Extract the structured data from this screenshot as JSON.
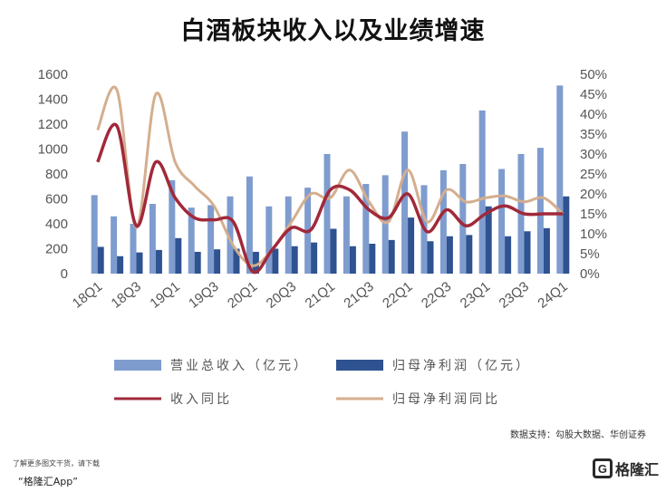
{
  "chart_data": {
    "type": "bar",
    "title": "白酒板块收入以及业绩增速",
    "categories": [
      "18Q1",
      "18Q2",
      "18Q3",
      "18Q4",
      "19Q1",
      "19Q2",
      "19Q3",
      "19Q4",
      "20Q1",
      "20Q2",
      "20Q3",
      "20Q4",
      "21Q1",
      "21Q2",
      "21Q3",
      "21Q4",
      "22Q1",
      "22Q2",
      "22Q3",
      "22Q4",
      "23Q1",
      "23Q2",
      "23Q3",
      "23Q4",
      "24Q1"
    ],
    "x_tick_labels": [
      "18Q1",
      "18Q3",
      "19Q1",
      "19Q3",
      "20Q1",
      "20Q3",
      "21Q1",
      "21Q3",
      "22Q1",
      "22Q3",
      "23Q1",
      "23Q3",
      "24Q1"
    ],
    "left_axis": {
      "ylim": [
        0,
        1600
      ],
      "ticks": [
        "0",
        "200",
        "400",
        "600",
        "800",
        "1000",
        "1200",
        "1400",
        "1600"
      ]
    },
    "right_axis": {
      "ylim": [
        0,
        50
      ],
      "ticks": [
        "0%",
        "5%",
        "10%",
        "15%",
        "20%",
        "25%",
        "30%",
        "35%",
        "40%",
        "45%",
        "50%"
      ]
    },
    "bar_series": [
      {
        "name": "营业总收入（亿元）",
        "axis": "left",
        "color": "#7f9ccf",
        "values": [
          630,
          460,
          400,
          560,
          750,
          530,
          550,
          620,
          780,
          540,
          620,
          690,
          960,
          620,
          720,
          790,
          1140,
          710,
          830,
          880,
          1310,
          840,
          960,
          1010,
          1510
        ]
      },
      {
        "name": "归母净利润（亿元）",
        "axis": "left",
        "color": "#2f5290",
        "values": [
          215,
          140,
          170,
          190,
          285,
          175,
          195,
          200,
          175,
          200,
          220,
          250,
          360,
          220,
          240,
          270,
          450,
          260,
          300,
          310,
          540,
          300,
          340,
          365,
          620
        ]
      }
    ],
    "line_series": [
      {
        "name": "收入同比",
        "axis": "right",
        "color": "#a1293a",
        "values": [
          28,
          37,
          12,
          28,
          19,
          14,
          13.5,
          13,
          0.5,
          6,
          11.5,
          11,
          21,
          21,
          16,
          14,
          20,
          10.5,
          16,
          12,
          15,
          17,
          15,
          15,
          15
        ]
      },
      {
        "name": "归母净利润同比",
        "axis": "right",
        "color": "#d4ae8e",
        "values": [
          36,
          46,
          11.5,
          45,
          28,
          22,
          17,
          7,
          2,
          6,
          13,
          20,
          19,
          26,
          18,
          13,
          26,
          13,
          21,
          18,
          19,
          19.5,
          18,
          19,
          15
        ]
      }
    ],
    "grid": false,
    "legend_position": "bottom"
  },
  "source_text": "数据支持：勾股大数据、华创证券",
  "footer": {
    "tip": "了解更多图文干货，请下载",
    "app": "“格隆汇App”"
  },
  "logo": {
    "mark": "G",
    "text": "格隆汇"
  }
}
